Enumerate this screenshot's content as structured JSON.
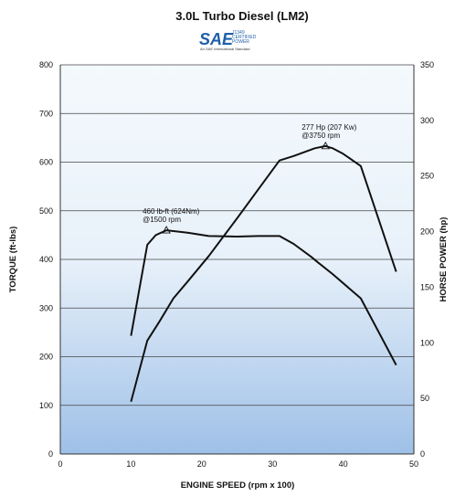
{
  "chart_data": {
    "type": "line",
    "title": "3.0L Turbo Diesel (LM2)",
    "xlabel": "ENGINE SPEED (rpm x 100)",
    "ylabel": "TORQUE (ft-lbs)",
    "y2label": "HORSE POWER (hp)",
    "xlim": [
      0,
      50
    ],
    "ylim": [
      0,
      800
    ],
    "y2lim": [
      0,
      350
    ],
    "xticks": [
      "0",
      "10",
      "20",
      "30",
      "40",
      "50"
    ],
    "yticks": [
      "0",
      "100",
      "200",
      "300",
      "400",
      "500",
      "600",
      "700",
      "800"
    ],
    "y2ticks": [
      "0",
      "50",
      "100",
      "150",
      "200",
      "250",
      "300",
      "350"
    ],
    "grid": true,
    "series": [
      {
        "name": "Torque",
        "axis": "left",
        "x": [
          10,
          12.3,
          13.5,
          15,
          18,
          21,
          25,
          28,
          31,
          33,
          35.5,
          36.5,
          38.5,
          42.5,
          47.5
        ],
        "y": [
          243,
          430,
          450,
          460,
          455,
          448,
          447,
          448,
          448,
          432,
          405,
          393,
          370,
          320,
          183
        ]
      },
      {
        "name": "Horse Power",
        "axis": "right",
        "x": [
          10,
          12.3,
          14,
          16,
          18,
          21,
          25,
          28,
          31,
          33,
          36,
          37.5,
          38.5,
          40,
          42.5,
          47.5
        ],
        "y": [
          47,
          102,
          119,
          140,
          155,
          178,
          212,
          238,
          264,
          268,
          275,
          277,
          275,
          270,
          259,
          164
        ]
      }
    ],
    "annotations": [
      {
        "line1": "460 lb-ft (624Nm)",
        "line2": "@1500 rpm",
        "x": 15,
        "y": 460,
        "axis": "left"
      },
      {
        "line1": "277 Hp (207 Kw)",
        "line2": "@3750 rpm",
        "x": 37.5,
        "y": 277,
        "axis": "right"
      }
    ],
    "colors": {
      "plot_top": "#f4f9fc",
      "plot_bottom": "#9ec0e7",
      "grid": "#444444",
      "line": "#111111"
    }
  },
  "logo": {
    "mark": "SAE",
    "line1": "J1349",
    "line2": "CERTIFIED",
    "line3": "POWER",
    "tagline": "An SAE International Standard",
    "color": "#1e5fa8"
  }
}
